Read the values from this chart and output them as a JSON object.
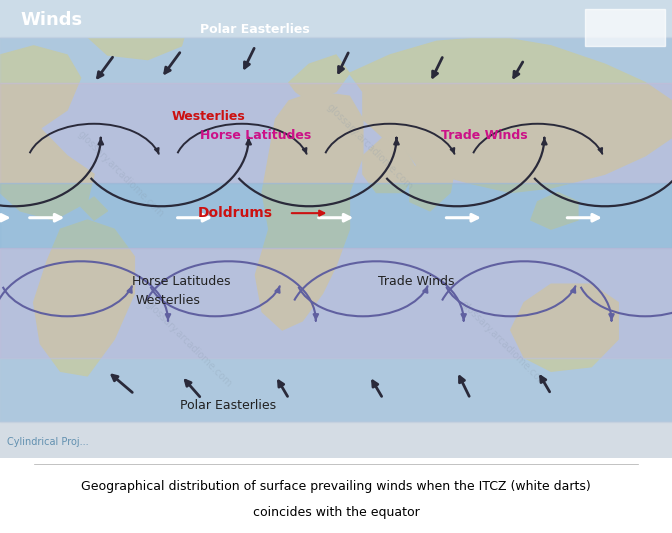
{
  "figsize": [
    6.72,
    5.33
  ],
  "dpi": 100,
  "bg_ocean": "#a8c8e0",
  "bg_caption": "#ffffff",
  "land_color": "#c8cc90",
  "polar_color": "#d8e4ec",
  "pink_band_color": "#c8b8d8",
  "pink_band_alpha": 0.45,
  "title": "Winds",
  "title_color": "white",
  "title_fontsize": 13,
  "title_fontweight": "bold",
  "caption_line1": "Geographical distribution of surface prevailing winds when the ITCZ (white darts)",
  "caption_line2": "coincides with the equator",
  "caption_fontsize": 9,
  "watermark_color": "#8899aa",
  "watermark_alpha": 0.25,
  "arrow_dark": "#2a2a3a",
  "arrow_purple": "#6060a0",
  "arrow_white": "#ffffff",
  "arrow_red": "#cc2020"
}
